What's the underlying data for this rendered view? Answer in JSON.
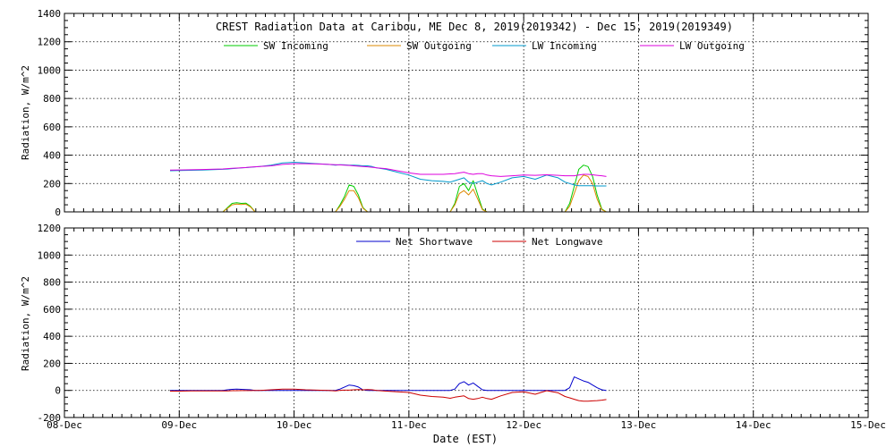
{
  "chart_data": [
    {
      "type": "line",
      "title": "CREST Radiation Data at Caribou, ME   Dec  8, 2019(2019342) - Dec 15, 2019(2019349)",
      "xlabel": "",
      "ylabel": "Radiation, W/m^2",
      "xlim": [
        0,
        7
      ],
      "ylim": [
        0,
        1400
      ],
      "yticks": [
        0,
        200,
        400,
        600,
        800,
        1000,
        1200,
        1400
      ],
      "grid": true,
      "legend": "top",
      "x": [
        0.92,
        1.0,
        1.1,
        1.2,
        1.3,
        1.38,
        1.42,
        1.46,
        1.5,
        1.54,
        1.58,
        1.62,
        1.66,
        1.7,
        1.8,
        1.9,
        2.0,
        2.1,
        2.2,
        2.3,
        2.36,
        2.4,
        2.44,
        2.48,
        2.52,
        2.56,
        2.6,
        2.64,
        2.68,
        2.72,
        2.8,
        2.9,
        3.0,
        3.1,
        3.2,
        3.3,
        3.36,
        3.4,
        3.44,
        3.48,
        3.52,
        3.56,
        3.6,
        3.64,
        3.68,
        3.72,
        3.8,
        3.9,
        4.0,
        4.1,
        4.2,
        4.3,
        4.36,
        4.4,
        4.44,
        4.48,
        4.52,
        4.56,
        4.6,
        4.64,
        4.68,
        4.72
      ],
      "series": [
        {
          "name": "SW Incoming",
          "color": "#00cc00",
          "values": [
            0,
            0,
            0,
            0,
            0,
            0,
            30,
            60,
            65,
            60,
            62,
            40,
            0,
            0,
            0,
            0,
            0,
            0,
            0,
            0,
            0,
            50,
            110,
            190,
            180,
            120,
            30,
            0,
            0,
            0,
            0,
            0,
            0,
            0,
            0,
            0,
            0,
            60,
            180,
            200,
            150,
            220,
            120,
            20,
            0,
            0,
            0,
            0,
            0,
            0,
            0,
            0,
            0,
            60,
            180,
            300,
            330,
            320,
            250,
            120,
            20,
            0
          ]
        },
        {
          "name": "SW Outgoing",
          "color": "#dd8800",
          "values": [
            0,
            0,
            0,
            0,
            0,
            0,
            25,
            50,
            55,
            52,
            55,
            35,
            0,
            0,
            0,
            0,
            0,
            0,
            0,
            0,
            0,
            40,
            90,
            150,
            150,
            100,
            25,
            0,
            0,
            0,
            0,
            0,
            0,
            0,
            0,
            0,
            0,
            50,
            130,
            150,
            120,
            160,
            90,
            15,
            0,
            0,
            0,
            0,
            0,
            0,
            0,
            0,
            0,
            40,
            130,
            220,
            260,
            250,
            200,
            90,
            15,
            0
          ]
        },
        {
          "name": "LW Incoming",
          "color": "#0099cc",
          "values": [
            290,
            292,
            293,
            295,
            298,
            300,
            302,
            305,
            308,
            310,
            312,
            315,
            318,
            320,
            330,
            345,
            350,
            345,
            340,
            335,
            330,
            333,
            332,
            330,
            330,
            328,
            325,
            325,
            320,
            310,
            300,
            280,
            260,
            230,
            220,
            215,
            210,
            220,
            230,
            240,
            210,
            200,
            210,
            220,
            200,
            190,
            210,
            240,
            250,
            230,
            260,
            240,
            210,
            200,
            190,
            185,
            185,
            185,
            185,
            183,
            183,
            183
          ]
        },
        {
          "name": "LW Outgoing",
          "color": "#dd00dd",
          "values": [
            295,
            296,
            297,
            299,
            301,
            303,
            305,
            307,
            309,
            311,
            313,
            316,
            318,
            320,
            325,
            335,
            340,
            340,
            338,
            335,
            333,
            332,
            330,
            328,
            325,
            322,
            320,
            318,
            315,
            310,
            305,
            290,
            275,
            265,
            265,
            265,
            268,
            270,
            275,
            280,
            270,
            265,
            270,
            270,
            260,
            255,
            250,
            255,
            260,
            258,
            262,
            258,
            255,
            255,
            255,
            260,
            265,
            265,
            262,
            258,
            255,
            250
          ]
        }
      ]
    },
    {
      "type": "line",
      "title": "",
      "xlabel": "Date (EST)",
      "ylabel": "Radiation, W/m^2",
      "xlim": [
        0,
        7
      ],
      "ylim": [
        -200,
        1200
      ],
      "yticks": [
        -200,
        0,
        200,
        400,
        600,
        800,
        1000,
        1200
      ],
      "xticks": [
        0,
        1,
        2,
        3,
        4,
        5,
        6,
        7
      ],
      "xtick_labels": [
        "08-Dec",
        "09-Dec",
        "10-Dec",
        "11-Dec",
        "12-Dec",
        "13-Dec",
        "14-Dec",
        "15-Dec"
      ],
      "grid": true,
      "legend": "top",
      "x": [
        0.92,
        1.0,
        1.1,
        1.2,
        1.3,
        1.38,
        1.42,
        1.46,
        1.5,
        1.54,
        1.58,
        1.62,
        1.66,
        1.7,
        1.8,
        1.9,
        2.0,
        2.1,
        2.2,
        2.3,
        2.36,
        2.4,
        2.44,
        2.48,
        2.52,
        2.56,
        2.6,
        2.64,
        2.68,
        2.72,
        2.8,
        2.9,
        3.0,
        3.1,
        3.2,
        3.3,
        3.36,
        3.4,
        3.44,
        3.48,
        3.52,
        3.56,
        3.6,
        3.64,
        3.68,
        3.72,
        3.8,
        3.9,
        4.0,
        4.1,
        4.2,
        4.3,
        4.36,
        4.4,
        4.44,
        4.48,
        4.52,
        4.56,
        4.6,
        4.64,
        4.68,
        4.72
      ],
      "series": [
        {
          "name": "Net Shortwave",
          "color": "#0000cc",
          "values": [
            0,
            0,
            0,
            0,
            0,
            0,
            5,
            8,
            10,
            8,
            7,
            5,
            0,
            0,
            0,
            0,
            0,
            0,
            0,
            0,
            0,
            10,
            25,
            40,
            35,
            25,
            5,
            0,
            0,
            0,
            0,
            0,
            0,
            0,
            0,
            0,
            0,
            10,
            50,
            65,
            40,
            55,
            30,
            5,
            0,
            0,
            0,
            0,
            0,
            0,
            0,
            0,
            0,
            20,
            100,
            85,
            70,
            60,
            40,
            20,
            5,
            0
          ]
        },
        {
          "name": "Net Longwave",
          "color": "#cc0000",
          "values": [
            -5,
            -5,
            -4,
            -4,
            -3,
            -3,
            -3,
            -2,
            -2,
            -1,
            -1,
            -1,
            0,
            0,
            5,
            10,
            10,
            5,
            2,
            0,
            -3,
            1,
            2,
            2,
            5,
            6,
            5,
            7,
            5,
            0,
            -5,
            -10,
            -15,
            -35,
            -45,
            -50,
            -58,
            -50,
            -45,
            -40,
            -60,
            -65,
            -60,
            -50,
            -60,
            -65,
            -40,
            -15,
            -10,
            -28,
            -2,
            -18,
            -45,
            -55,
            -65,
            -75,
            -80,
            -80,
            -77,
            -75,
            -72,
            -67
          ]
        }
      ]
    }
  ]
}
